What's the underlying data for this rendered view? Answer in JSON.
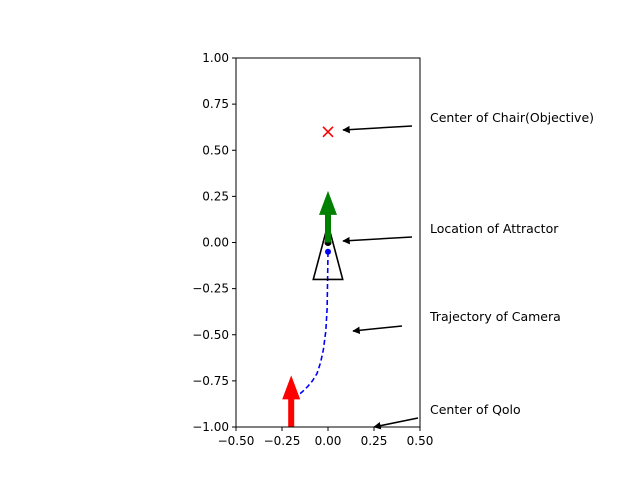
{
  "chart_data": {
    "type": "line",
    "title": "",
    "xlabel": "",
    "ylabel": "",
    "xlim": [
      -0.5,
      0.5
    ],
    "ylim": [
      -1.0,
      1.0
    ],
    "grid": false,
    "x_ticks": [
      -0.5,
      -0.25,
      0.0,
      0.25,
      0.5
    ],
    "x_tick_labels": [
      "−0.50",
      "−0.25",
      "0.00",
      "0.25",
      "0.50"
    ],
    "y_ticks": [
      -1.0,
      -0.75,
      -0.5,
      -0.25,
      0.0,
      0.25,
      0.5,
      0.75,
      1.0
    ],
    "y_tick_labels": [
      "−1.00",
      "−0.75",
      "−0.50",
      "−0.25",
      "0.00",
      "0.25",
      "0.50",
      "0.75",
      "1.00"
    ],
    "trajectory": {
      "color": "#0000ff",
      "style": "dashed",
      "points": [
        [
          -0.2,
          -0.93
        ],
        [
          -0.19,
          -0.85
        ],
        [
          -0.165,
          -0.83
        ],
        [
          -0.14,
          -0.81
        ],
        [
          -0.11,
          -0.78
        ],
        [
          -0.085,
          -0.75
        ],
        [
          -0.06,
          -0.71
        ],
        [
          -0.04,
          -0.65
        ],
        [
          -0.025,
          -0.58
        ],
        [
          -0.012,
          -0.48
        ],
        [
          -0.005,
          -0.36
        ],
        [
          -0.002,
          -0.2
        ],
        [
          0.0,
          -0.05
        ]
      ],
      "end_point": [
        0.0,
        -0.05
      ]
    },
    "objective": {
      "x": 0.0,
      "y": 0.6,
      "marker": "x",
      "color": "#ff0000"
    },
    "attractor": {
      "x": 0.0,
      "y": 0.0,
      "color": "#000000"
    },
    "camera_triangle": {
      "apex": [
        0.0,
        0.1
      ],
      "base_left": [
        -0.08,
        -0.2
      ],
      "base_right": [
        0.08,
        -0.2
      ],
      "color": "#000000"
    },
    "arrows": [
      {
        "color": "#008000",
        "x": 0.0,
        "y_start": 0.0,
        "y_end": 0.28
      },
      {
        "color": "#ff0000",
        "x": -0.2,
        "y_start": -1.0,
        "y_end": -0.72
      }
    ],
    "annotations": [
      {
        "text": "Center of Chair(Objective)"
      },
      {
        "text": "Location of Attractor"
      },
      {
        "text": "Trajectory of Camera"
      },
      {
        "text": "Center of Qolo"
      }
    ]
  }
}
